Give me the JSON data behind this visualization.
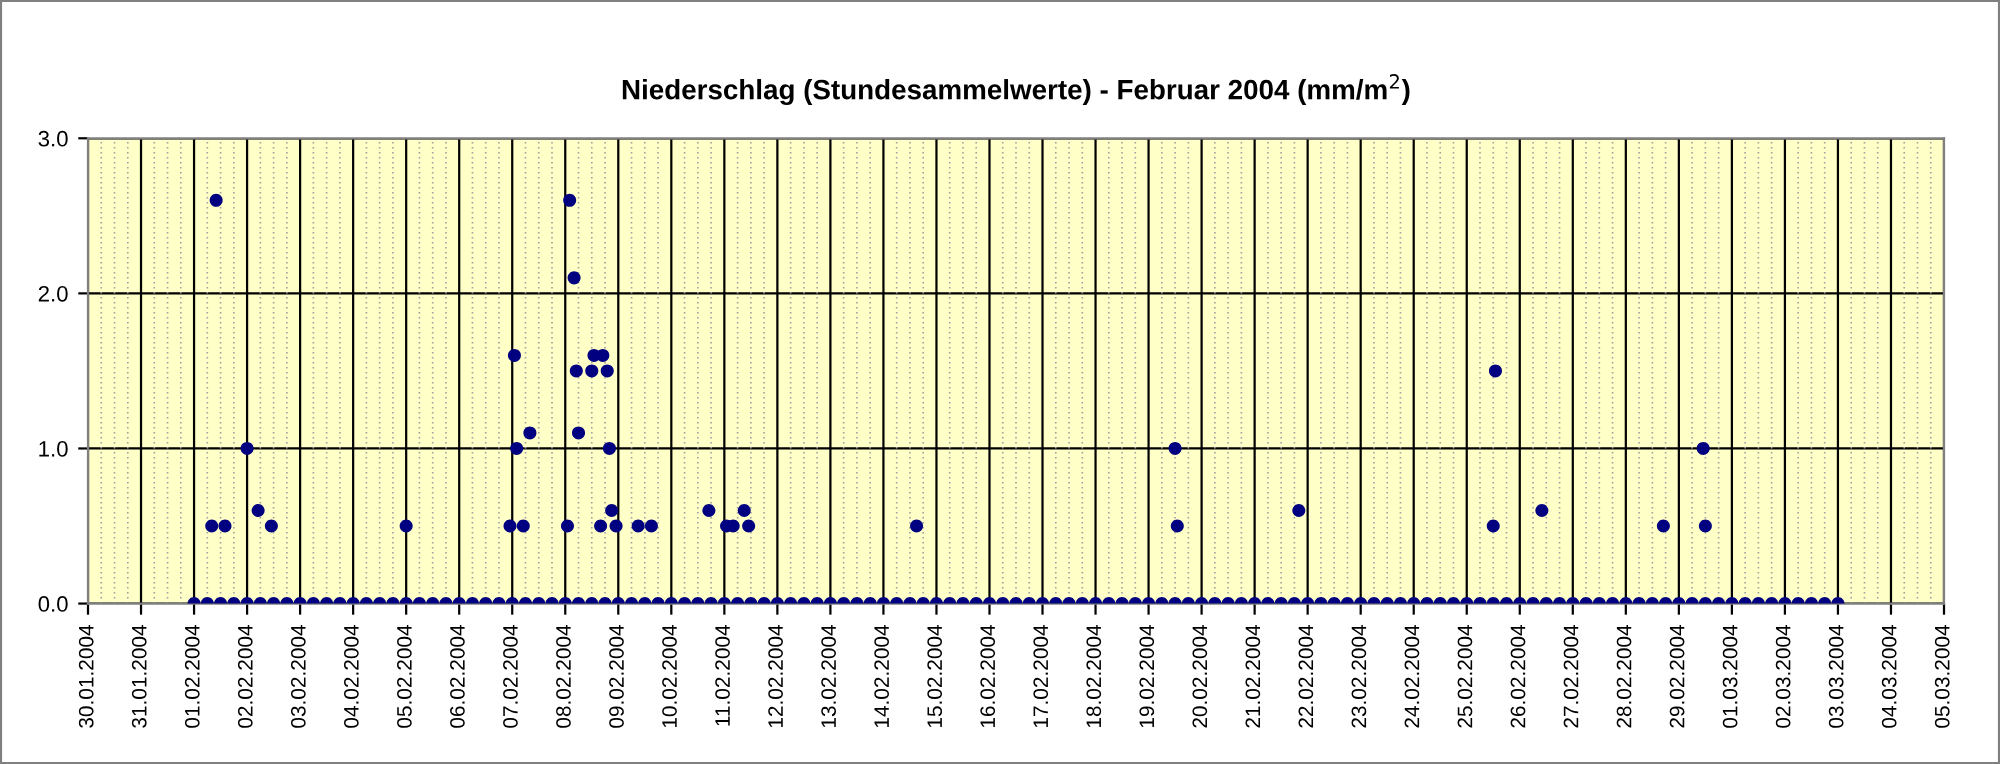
{
  "chart_data": {
    "type": "scatter",
    "title": "Niederschlag (Stundesammelwerte) - Februar 2004 (mm/m$^{2}$)",
    "series": [
      {
        "color": "#000080",
        "marker": "circle",
        "x": [
          "2004-02-01T08:00",
          "2004-02-01T10:00",
          "2004-02-01T14:00",
          "2004-02-02T00:00",
          "2004-02-02T05:00",
          "2004-02-02T11:00",
          "2004-02-05T00:00",
          "2004-02-06T23:00",
          "2004-02-07T01:00",
          "2004-02-07T02:00",
          "2004-02-07T05:00",
          "2004-02-07T08:00",
          "2004-02-08T01:00",
          "2004-02-08T02:00",
          "2004-02-08T04:00",
          "2004-02-08T05:00",
          "2004-02-08T06:00",
          "2004-02-08T12:00",
          "2004-02-08T13:00",
          "2004-02-08T16:00",
          "2004-02-08T17:00",
          "2004-02-08T19:00",
          "2004-02-08T20:00",
          "2004-02-08T21:00",
          "2004-02-08T23:00",
          "2004-02-09T09:00",
          "2004-02-09T15:00",
          "2004-02-10T17:00",
          "2004-02-11T01:00",
          "2004-02-11T04:00",
          "2004-02-11T09:00",
          "2004-02-11T11:00",
          "2004-02-14T15:00",
          "2004-02-19T12:00",
          "2004-02-19T13:00",
          "2004-02-21T20:00",
          "2004-02-25T12:00",
          "2004-02-25T13:00",
          "2004-02-26T10:00",
          "2004-02-28T17:00",
          "2004-02-29T11:00",
          "2004-02-29T12:00"
        ],
        "values": [
          0.5,
          2.6,
          0.5,
          1.0,
          0.6,
          0.5,
          0.5,
          0.5,
          1.6,
          1.0,
          0.5,
          1.1,
          0.5,
          2.6,
          2.1,
          1.5,
          1.1,
          1.5,
          1.6,
          0.5,
          1.6,
          1.5,
          1.0,
          0.6,
          0.5,
          0.5,
          0.5,
          0.6,
          0.5,
          0.5,
          0.6,
          0.5,
          0.5,
          1.0,
          0.5,
          0.6,
          0.5,
          1.5,
          0.6,
          0.5,
          1.0,
          0.5
        ]
      },
      {
        "color": "#000080",
        "marker": "circle",
        "x": [
          "2004-02-01T00:00",
          "2004-02-01T06:00",
          "2004-02-01T12:00",
          "2004-02-01T18:00",
          "2004-02-02T00:00",
          "2004-02-02T06:00",
          "2004-02-02T12:00",
          "2004-02-02T18:00",
          "2004-02-03T00:00",
          "2004-02-03T06:00",
          "2004-02-03T12:00",
          "2004-02-03T18:00",
          "2004-02-04T00:00",
          "2004-02-04T06:00",
          "2004-02-04T12:00",
          "2004-02-04T18:00",
          "2004-02-05T00:00",
          "2004-02-05T06:00",
          "2004-02-05T12:00",
          "2004-02-05T18:00",
          "2004-02-06T00:00",
          "2004-02-06T06:00",
          "2004-02-06T12:00",
          "2004-02-06T18:00",
          "2004-02-07T00:00",
          "2004-02-07T06:00",
          "2004-02-07T12:00",
          "2004-02-07T18:00",
          "2004-02-08T00:00",
          "2004-02-08T06:00",
          "2004-02-08T12:00",
          "2004-02-08T18:00",
          "2004-02-09T00:00",
          "2004-02-09T06:00",
          "2004-02-09T12:00",
          "2004-02-09T18:00",
          "2004-02-10T00:00",
          "2004-02-10T06:00",
          "2004-02-10T12:00",
          "2004-02-10T18:00",
          "2004-02-11T00:00",
          "2004-02-11T06:00",
          "2004-02-11T12:00",
          "2004-02-11T18:00",
          "2004-02-12T00:00",
          "2004-02-12T06:00",
          "2004-02-12T12:00",
          "2004-02-12T18:00",
          "2004-02-13T00:00",
          "2004-02-13T06:00",
          "2004-02-13T12:00",
          "2004-02-13T18:00",
          "2004-02-14T00:00",
          "2004-02-14T06:00",
          "2004-02-14T12:00",
          "2004-02-14T18:00",
          "2004-02-15T00:00",
          "2004-02-15T06:00",
          "2004-02-15T12:00",
          "2004-02-15T18:00",
          "2004-02-16T00:00",
          "2004-02-16T06:00",
          "2004-02-16T12:00",
          "2004-02-16T18:00",
          "2004-02-17T00:00",
          "2004-02-17T06:00",
          "2004-02-17T12:00",
          "2004-02-17T18:00",
          "2004-02-18T00:00",
          "2004-02-18T06:00",
          "2004-02-18T12:00",
          "2004-02-18T18:00",
          "2004-02-19T00:00",
          "2004-02-19T06:00",
          "2004-02-19T12:00",
          "2004-02-19T18:00",
          "2004-02-20T00:00",
          "2004-02-20T06:00",
          "2004-02-20T12:00",
          "2004-02-20T18:00",
          "2004-02-21T00:00",
          "2004-02-21T06:00",
          "2004-02-21T12:00",
          "2004-02-21T18:00",
          "2004-02-22T00:00",
          "2004-02-22T06:00",
          "2004-02-22T12:00",
          "2004-02-22T18:00",
          "2004-02-23T00:00",
          "2004-02-23T06:00",
          "2004-02-23T12:00",
          "2004-02-23T18:00",
          "2004-02-24T00:00",
          "2004-02-24T06:00",
          "2004-02-24T12:00",
          "2004-02-24T18:00",
          "2004-02-25T00:00",
          "2004-02-25T06:00",
          "2004-02-25T12:00",
          "2004-02-25T18:00",
          "2004-02-26T00:00",
          "2004-02-26T06:00",
          "2004-02-26T12:00",
          "2004-02-26T18:00",
          "2004-02-27T00:00",
          "2004-02-27T06:00",
          "2004-02-27T12:00",
          "2004-02-27T18:00",
          "2004-02-28T00:00",
          "2004-02-28T06:00",
          "2004-02-28T12:00",
          "2004-02-28T18:00",
          "2004-02-29T00:00",
          "2004-02-29T06:00",
          "2004-02-29T12:00",
          "2004-02-29T18:00",
          "2004-03-01T00:00",
          "2004-03-01T06:00",
          "2004-03-01T12:00",
          "2004-03-01T18:00",
          "2004-03-02T00:00",
          "2004-03-02T06:00",
          "2004-03-02T12:00",
          "2004-03-02T18:00",
          "2004-03-03T00:00"
        ],
        "values": [
          0,
          0,
          0,
          0,
          0,
          0,
          0,
          0,
          0,
          0,
          0,
          0,
          0,
          0,
          0,
          0,
          0,
          0,
          0,
          0,
          0,
          0,
          0,
          0,
          0,
          0,
          0,
          0,
          0,
          0,
          0,
          0,
          0,
          0,
          0,
          0,
          0,
          0,
          0,
          0,
          0,
          0,
          0,
          0,
          0,
          0,
          0,
          0,
          0,
          0,
          0,
          0,
          0,
          0,
          0,
          0,
          0,
          0,
          0,
          0,
          0,
          0,
          0,
          0,
          0,
          0,
          0,
          0,
          0,
          0,
          0,
          0,
          0,
          0,
          0,
          0,
          0,
          0,
          0,
          0,
          0,
          0,
          0,
          0,
          0,
          0,
          0,
          0,
          0,
          0,
          0,
          0,
          0,
          0,
          0,
          0,
          0,
          0,
          0,
          0,
          0,
          0,
          0,
          0,
          0,
          0,
          0,
          0,
          0,
          0,
          0,
          0,
          0,
          0,
          0,
          0,
          0,
          0,
          0,
          0,
          0,
          0,
          0,
          0,
          0
        ]
      }
    ],
    "xlim": [
      "2004-01-30",
      "2004-03-05"
    ],
    "xticks": [
      {
        "value": "2004-01-30",
        "label": "30.01.2004"
      },
      {
        "value": "2004-01-31",
        "label": "31.01.2004"
      },
      {
        "value": "2004-02-01",
        "label": "01.02.2004"
      },
      {
        "value": "2004-02-02",
        "label": "02.02.2004"
      },
      {
        "value": "2004-02-03",
        "label": "03.02.2004"
      },
      {
        "value": "2004-02-04",
        "label": "04.02.2004"
      },
      {
        "value": "2004-02-05",
        "label": "05.02.2004"
      },
      {
        "value": "2004-02-06",
        "label": "06.02.2004"
      },
      {
        "value": "2004-02-07",
        "label": "07.02.2004"
      },
      {
        "value": "2004-02-08",
        "label": "08.02.2004"
      },
      {
        "value": "2004-02-09",
        "label": "09.02.2004"
      },
      {
        "value": "2004-02-10",
        "label": "10.02.2004"
      },
      {
        "value": "2004-02-11",
        "label": "11.02.2004"
      },
      {
        "value": "2004-02-12",
        "label": "12.02.2004"
      },
      {
        "value": "2004-02-13",
        "label": "13.02.2004"
      },
      {
        "value": "2004-02-14",
        "label": "14.02.2004"
      },
      {
        "value": "2004-02-15",
        "label": "15.02.2004"
      },
      {
        "value": "2004-02-16",
        "label": "16.02.2004"
      },
      {
        "value": "2004-02-17",
        "label": "17.02.2004"
      },
      {
        "value": "2004-02-18",
        "label": "18.02.2004"
      },
      {
        "value": "2004-02-19",
        "label": "19.02.2004"
      },
      {
        "value": "2004-02-20",
        "label": "20.02.2004"
      },
      {
        "value": "2004-02-21",
        "label": "21.02.2004"
      },
      {
        "value": "2004-02-22",
        "label": "22.02.2004"
      },
      {
        "value": "2004-02-23",
        "label": "23.02.2004"
      },
      {
        "value": "2004-02-24",
        "label": "24.02.2004"
      },
      {
        "value": "2004-02-25",
        "label": "25.02.2004"
      },
      {
        "value": "2004-02-26",
        "label": "26.02.2004"
      },
      {
        "value": "2004-02-27",
        "label": "27.02.2004"
      },
      {
        "value": "2004-02-28",
        "label": "28.02.2004"
      },
      {
        "value": "2004-02-29",
        "label": "29.02.2004"
      },
      {
        "value": "2004-03-01",
        "label": "01.03.2004"
      },
      {
        "value": "2004-03-02",
        "label": "02.03.2004"
      },
      {
        "value": "2004-03-03",
        "label": "03.03.2004"
      },
      {
        "value": "2004-03-04",
        "label": "04.03.2004"
      },
      {
        "value": "2004-03-05",
        "label": "05.03.2004"
      }
    ],
    "ylim": [
      0,
      3
    ],
    "yticks": [
      {
        "value": 0,
        "label": "0.0"
      },
      {
        "value": 1,
        "label": "1.0"
      },
      {
        "value": 2,
        "label": "2.0"
      },
      {
        "value": 3,
        "label": "3.0"
      }
    ],
    "grid": true
  }
}
